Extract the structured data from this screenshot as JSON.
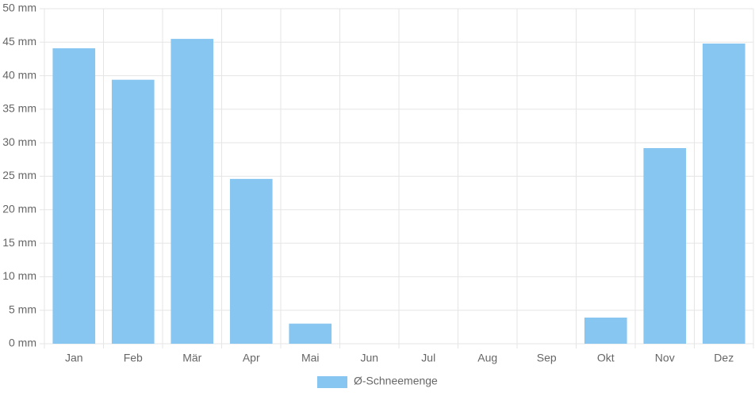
{
  "chart_data": {
    "type": "bar",
    "categories": [
      "Jan",
      "Feb",
      "Mär",
      "Apr",
      "Mai",
      "Jun",
      "Jul",
      "Aug",
      "Sep",
      "Okt",
      "Nov",
      "Dez"
    ],
    "series": [
      {
        "name": "Ø-Schneemenge",
        "color": "#88c6f2",
        "values": [
          44.1,
          39.4,
          45.5,
          24.6,
          3.0,
          0,
          0,
          0,
          0,
          3.9,
          29.2,
          44.8
        ]
      }
    ],
    "ylim": [
      0,
      50
    ],
    "yticks": [
      {
        "value": 0,
        "label": "0 mm"
      },
      {
        "value": 5,
        "label": "5 mm"
      },
      {
        "value": 10,
        "label": "10 mm"
      },
      {
        "value": 15,
        "label": "15 mm"
      },
      {
        "value": 20,
        "label": "20 mm"
      },
      {
        "value": 25,
        "label": "25 mm"
      },
      {
        "value": 30,
        "label": "30 mm"
      },
      {
        "value": 35,
        "label": "35 mm"
      },
      {
        "value": 40,
        "label": "40 mm"
      },
      {
        "value": 45,
        "label": "45 mm"
      },
      {
        "value": 50,
        "label": "50 mm"
      }
    ],
    "grid": true,
    "legend": "bottom"
  }
}
